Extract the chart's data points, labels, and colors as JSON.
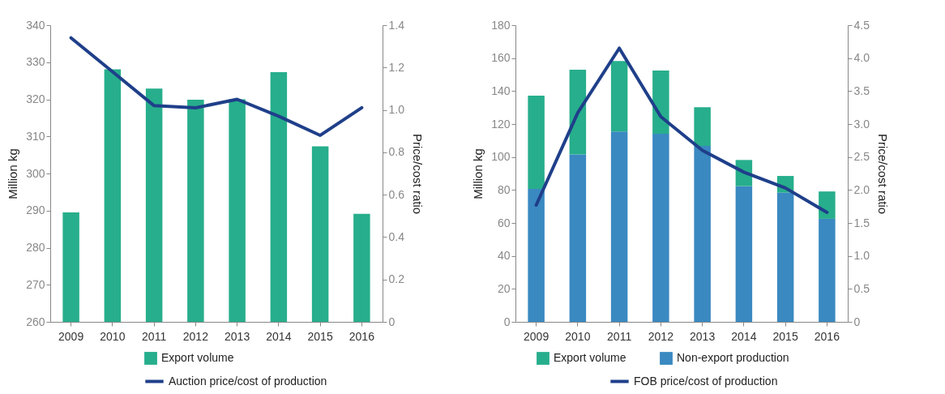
{
  "chart_data": [
    {
      "type": "bar",
      "categories": [
        "2009",
        "2010",
        "2011",
        "2012",
        "2013",
        "2014",
        "2015",
        "2016"
      ],
      "ylabel": "Million kg",
      "y2label": "Price/cost ratio",
      "ylim": [
        260,
        340
      ],
      "yticks": [
        260,
        270,
        280,
        290,
        300,
        310,
        320,
        330,
        340
      ],
      "y2lim": [
        0,
        1.4
      ],
      "y2ticks": [
        0,
        0.2,
        0.4,
        0.6,
        0.8,
        {
          "value": 1,
          "label": "1.0"
        },
        1.2,
        1.4
      ],
      "legend": "bottom",
      "series": [
        {
          "name": "Export volume",
          "type": "bar",
          "color": "#27ae8c",
          "values": [
            289.5,
            328.1,
            322.9,
            319.9,
            320,
            327.3,
            307.3,
            289.1
          ]
        },
        {
          "name": "Auction price/cost of production",
          "type": "line",
          "axis": "y2",
          "color": "#1f3f8a",
          "values": [
            1.34,
            1.18,
            1.02,
            1.01,
            1.05,
            0.97,
            0.88,
            1.01
          ]
        }
      ]
    },
    {
      "type": "bar",
      "stacked": true,
      "categories": [
        "2009",
        "2010",
        "2011",
        "2012",
        "2013",
        "2014",
        "2015",
        "2016"
      ],
      "ylabel": "Million kg",
      "y2label": "Price/cost ratio",
      "ylim": [
        0,
        180
      ],
      "yticks": [
        0,
        20,
        40,
        60,
        80,
        100,
        120,
        140,
        160,
        180
      ],
      "y2lim": [
        0,
        4.5
      ],
      "y2ticks": [
        0,
        0.5,
        {
          "value": 1,
          "label": "1.0"
        },
        1.5,
        {
          "value": 2,
          "label": "2.0"
        },
        2.5,
        {
          "value": 3,
          "label": "3.0"
        },
        3.5,
        {
          "value": 4,
          "label": "4.0"
        },
        4.5
      ],
      "legend": "bottom",
      "series": [
        {
          "name": "Non-export production",
          "type": "bar",
          "color": "#3a89c1",
          "values": [
            80.7,
            101.5,
            115.5,
            114.1,
            106.7,
            82.3,
            78.4,
            62.5
          ]
        },
        {
          "name": "Export volume",
          "type": "bar",
          "color": "#27ae8c",
          "values": [
            56.5,
            51.4,
            42.7,
            38.3,
            23.5,
            15.9,
            10.1,
            16.6
          ]
        },
        {
          "name": "FOB price/cost of production",
          "type": "line",
          "axis": "y2",
          "color": "#1f3f8a",
          "values": [
            1.77,
            3.17,
            4.15,
            3.11,
            2.6,
            2.27,
            2.03,
            1.66
          ]
        }
      ]
    }
  ]
}
